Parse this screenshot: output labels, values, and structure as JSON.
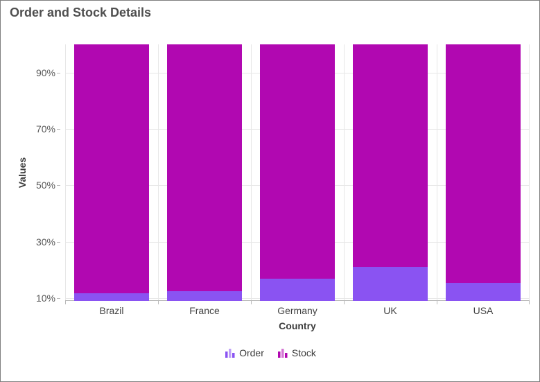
{
  "chart_data": {
    "type": "stacked-bar-100",
    "title": "Order and Stock Details",
    "categories": [
      "Brazil",
      "France",
      "Germany",
      "UK",
      "USA"
    ],
    "series": [
      {
        "name": "Order",
        "color": "#8a53f2",
        "values_pct": [
          11.8,
          12.4,
          16.8,
          21.0,
          15.5
        ]
      },
      {
        "name": "Stock",
        "color": "#b108b1",
        "values_pct": [
          88.2,
          87.6,
          83.2,
          79.0,
          84.5
        ]
      }
    ],
    "stack_total_pct": 100,
    "xlabel": "Country",
    "ylabel": "Values",
    "y_ticks": [
      "10%",
      "30%",
      "50%",
      "70%",
      "90%"
    ],
    "y_tick_values": [
      10,
      30,
      50,
      70,
      90
    ],
    "ylim": [
      9,
      100
    ],
    "grid": true,
    "legend_position": "bottom"
  }
}
